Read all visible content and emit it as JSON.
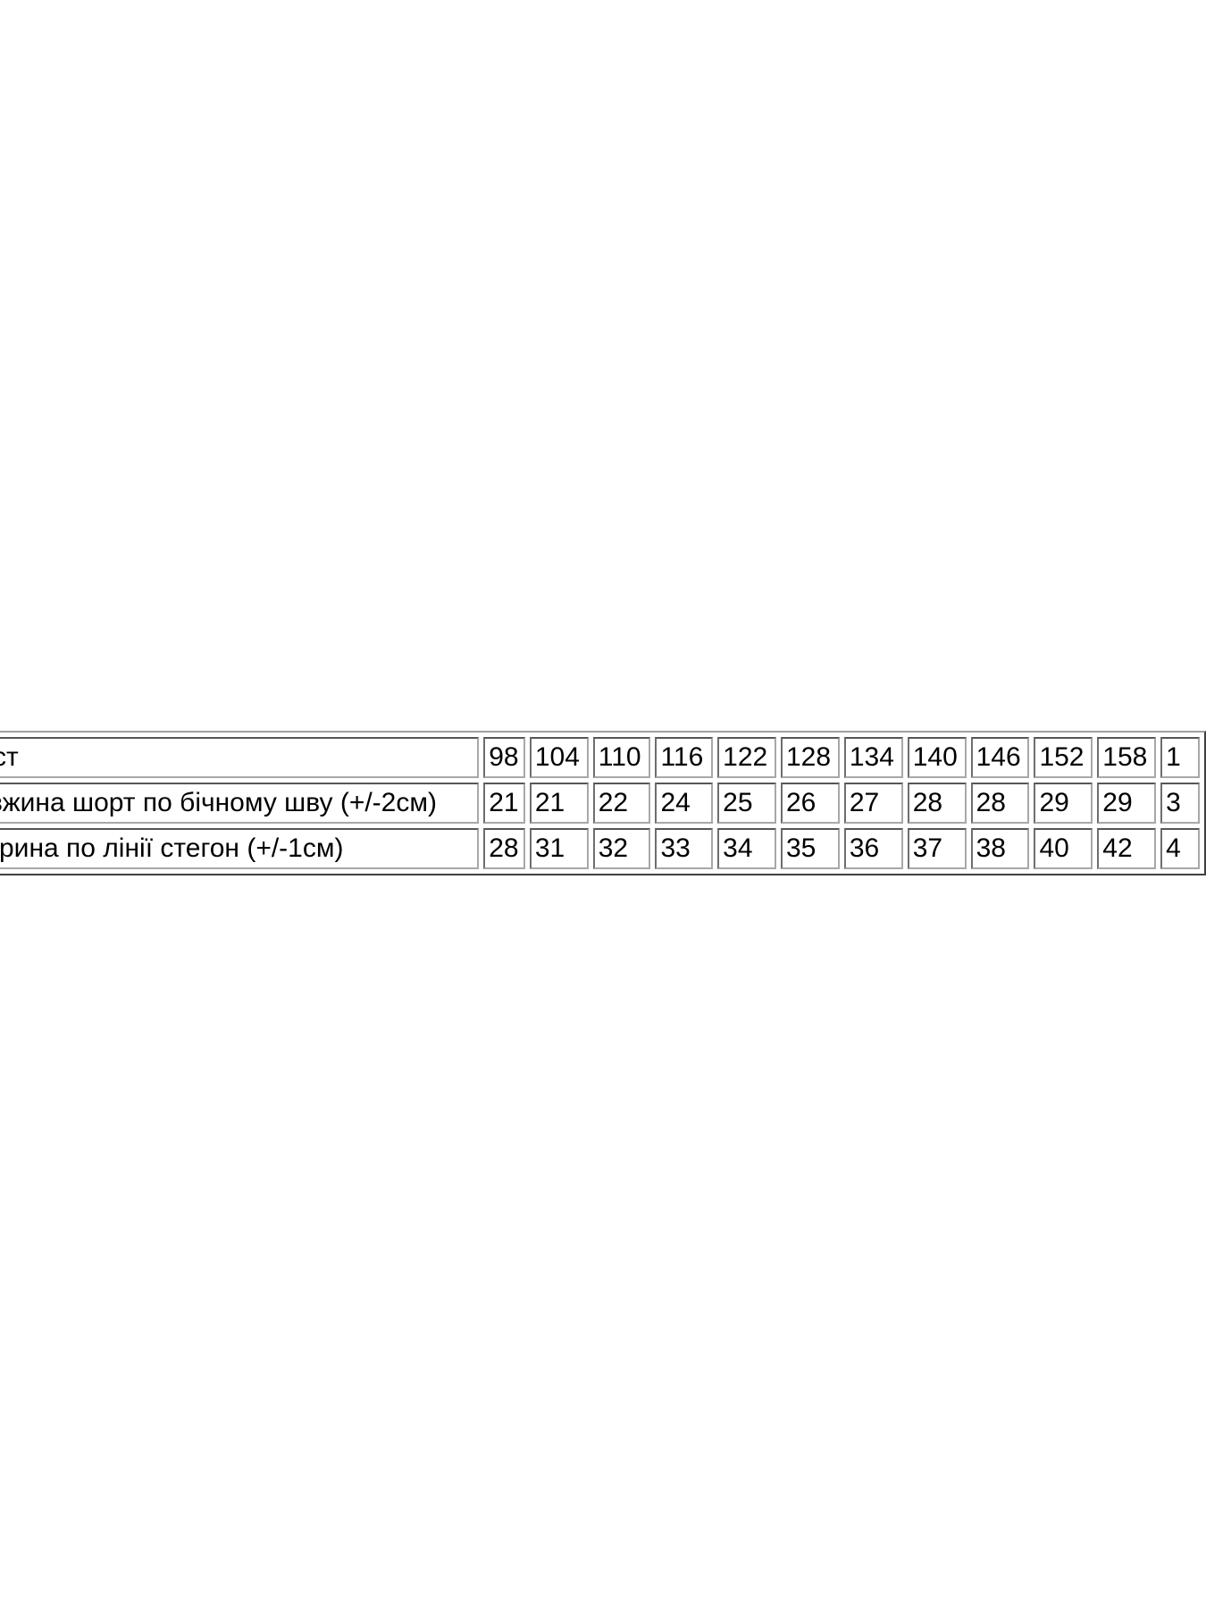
{
  "page": {
    "background_color": "#ffffff",
    "text_color": "#000000",
    "table_border_color": "#808080"
  },
  "size_chart": {
    "type": "table",
    "header": {
      "label": "ст",
      "sizes": [
        "98",
        "104",
        "110",
        "116",
        "122",
        "128",
        "134",
        "140",
        "146",
        "152",
        "158"
      ],
      "partial": "1"
    },
    "rows": [
      {
        "label": "вжина шорт по бічному шву (+/-2см)",
        "values": [
          "21",
          "21",
          "22",
          "24",
          "25",
          "26",
          "27",
          "28",
          "28",
          "29",
          "29"
        ],
        "partial": "3"
      },
      {
        "label": "рина по лінії стегон (+/-1см)",
        "values": [
          "28",
          "31",
          "32",
          "33",
          "34",
          "35",
          "36",
          "37",
          "38",
          "40",
          "42"
        ],
        "partial": "4"
      }
    ]
  }
}
